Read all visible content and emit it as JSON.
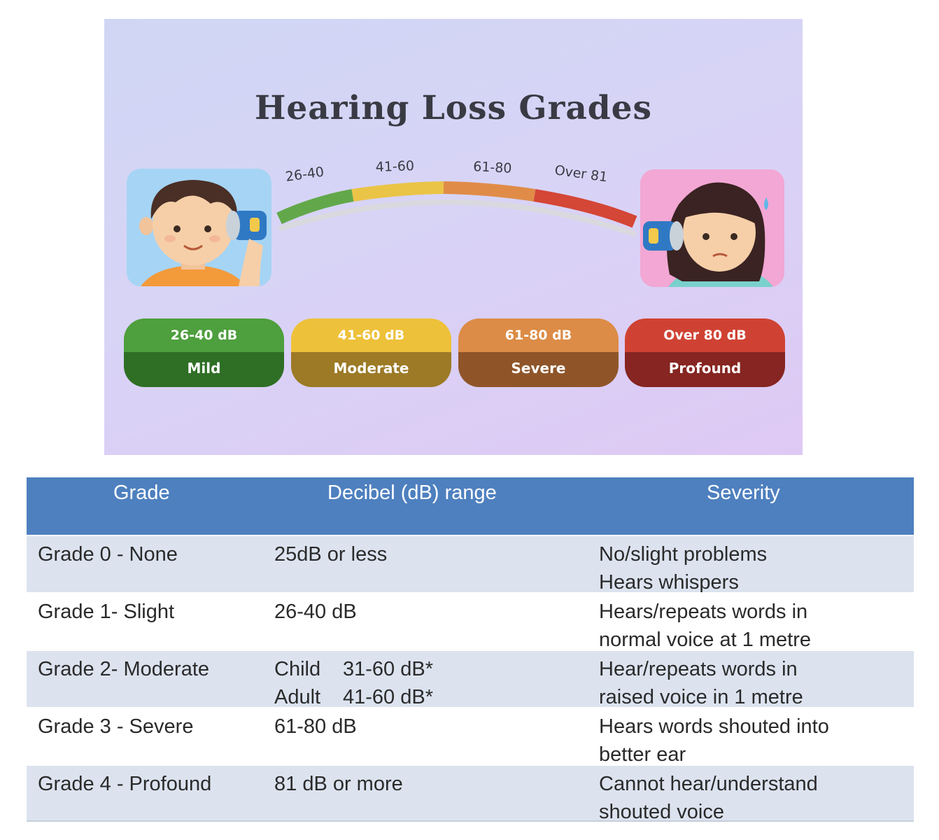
{
  "infographic": {
    "title": "Hearing Loss Grades",
    "arc_labels": [
      "26-40",
      "41-60",
      "61-80",
      "Over 81"
    ],
    "grades": [
      {
        "range": "26-40 dB",
        "name": "Mild",
        "color": "#4e9f3d"
      },
      {
        "range": "41-60 dB",
        "name": "Moderate",
        "color": "#eec13a"
      },
      {
        "range": "61-80 dB",
        "name": "Severe",
        "color": "#dc8c46"
      },
      {
        "range": "Over 80 dB",
        "name": "Profound",
        "color": "#cf4233"
      }
    ],
    "icons": [
      "boy-with-tin-can-phone-icon",
      "girl-with-tin-can-phone-icon"
    ]
  },
  "table": {
    "headers": {
      "grade": "Grade",
      "db": "Decibel (dB) range",
      "severity": "Severity"
    },
    "header_color": "#4e80bf",
    "rows": [
      {
        "grade": "Grade 0 - None",
        "db1": "25dB or less",
        "sev1": "No/slight problems",
        "sev2": "Hears whispers"
      },
      {
        "grade": "Grade 1- Slight",
        "db1": "26-40 dB",
        "sev1": "Hears/repeats words in",
        "sev2": "normal voice at 1 metre"
      },
      {
        "grade": "Grade 2- Moderate",
        "db1_label": "Child",
        "db1_value": "31-60 dB*",
        "db2_label": "Adult",
        "db2_value": "41-60 dB*",
        "sev1": "Hear/repeats words in",
        "sev2": "raised voice in 1 metre"
      },
      {
        "grade": "Grade 3 - Severe",
        "db1": "61-80 dB",
        "sev1": "Hears words shouted into",
        "sev2": "better ear"
      },
      {
        "grade": "Grade 4 - Profound",
        "db1": "81 dB or more",
        "sev1": "Cannot hear/understand",
        "sev2": "shouted voice"
      }
    ]
  }
}
